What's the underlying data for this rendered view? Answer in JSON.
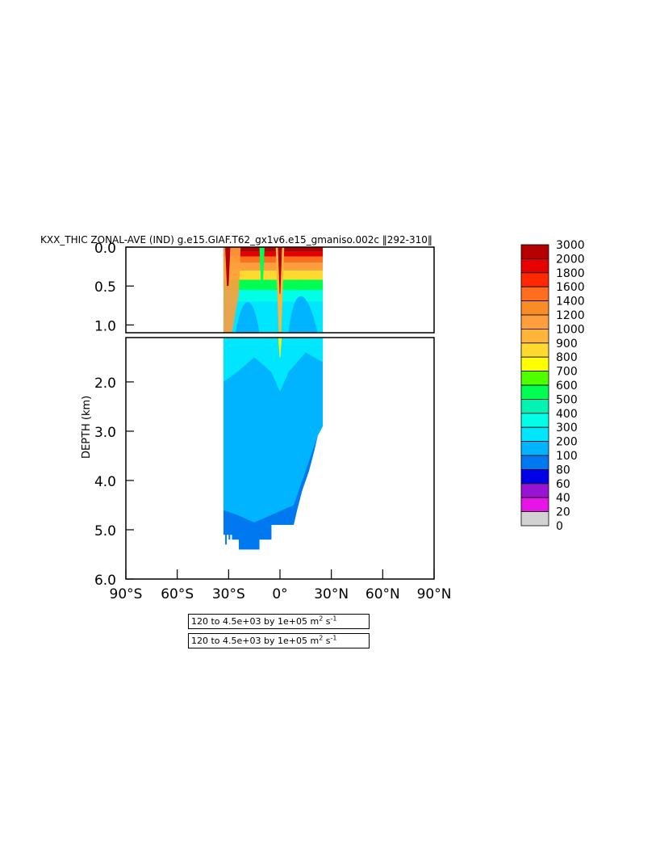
{
  "chart_data": {
    "type": "heatmap",
    "title": "KXX_THIC ZONAL-AVE (IND) g.e15.GIAF.T62_gx1v6.e15_gmaniso.002c ‖292-310‖",
    "ylabel": "DEPTH (km)",
    "xlabel": "",
    "x_ticks": [
      "90°S",
      "60°S",
      "30°S",
      "0°",
      "30°N",
      "60°N",
      "90°N"
    ],
    "x_values": [
      -90,
      -60,
      -30,
      0,
      30,
      60,
      90
    ],
    "xlim": [
      -90,
      90
    ],
    "upper_panel": {
      "ylim": [
        0.0,
        1.1
      ],
      "y_ticks": [
        "0.0",
        "0.5",
        "1.0"
      ],
      "y_values": [
        0.0,
        0.5,
        1.0
      ]
    },
    "lower_panel": {
      "ylim": [
        1.1,
        6.0
      ],
      "y_ticks": [
        "2.0",
        "3.0",
        "4.0",
        "5.0",
        "6.0"
      ],
      "y_values": [
        2.0,
        3.0,
        4.0,
        5.0,
        6.0
      ]
    },
    "colorbar": {
      "levels": [
        "3000",
        "2000",
        "1800",
        "1600",
        "1400",
        "1200",
        "1000",
        "900",
        "800",
        "700",
        "600",
        "500",
        "400",
        "300",
        "200",
        "100",
        "80",
        "60",
        "40",
        "20",
        "0"
      ],
      "colors": [
        "#b40000",
        "#e60000",
        "#ff2800",
        "#ff6e1e",
        "#fa8c28",
        "#ff9e3c",
        "#ffb43c",
        "#ffd830",
        "#ffff00",
        "#50ff00",
        "#00ff50",
        "#00f5b4",
        "#00ffe6",
        "#00e6ff",
        "#00b4ff",
        "#0078f0",
        "#0000e6",
        "#9614d2",
        "#e614e6",
        "#d2d2d2",
        "#6e6e6e"
      ]
    },
    "data_extent": {
      "lat_min": -33,
      "lat_max": 25,
      "max_depth_km": 5.4
    }
  },
  "info_boxes": [
    {
      "range": "120 to 4.5e+03 by 1e+05 m",
      "sup": "2",
      "unit": "s",
      "sup2": "-1"
    },
    {
      "range": "120 to 4.5e+03 by 1e+05 m",
      "sup": "2",
      "unit": "s",
      "sup2": "-1"
    }
  ]
}
